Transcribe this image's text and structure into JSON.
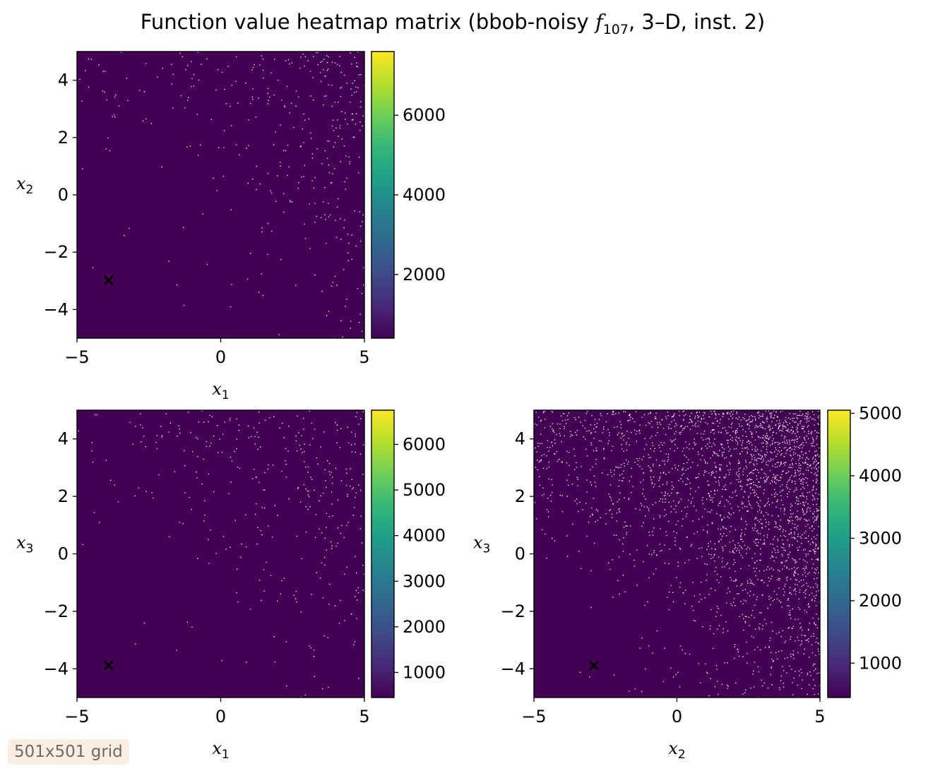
{
  "title": {
    "prefix": "Function value heatmap matrix (bbob-noisy ",
    "func_symbol": "f",
    "func_sub": "107",
    "suffix": ", 3–D, inst. 2)"
  },
  "badge": "501x501 grid",
  "colors": {
    "viridis": [
      "#440154",
      "#482878",
      "#3e4a89",
      "#31688e",
      "#26828e",
      "#1f9e89",
      "#35b779",
      "#6ece58",
      "#b5de2b",
      "#fde725"
    ],
    "background_cell": "#440154",
    "speckle": "#e8e8e8",
    "marker": "#ffffff"
  },
  "chart_data": [
    {
      "type": "heatmap",
      "panel": "x1-x2",
      "xlabel": {
        "base": "x",
        "sub": "1"
      },
      "ylabel": {
        "base": "x",
        "sub": "2"
      },
      "xlim": [
        -5,
        5
      ],
      "ylim": [
        -5,
        5
      ],
      "xticks": [
        -5,
        0,
        5
      ],
      "yticks": [
        -4,
        -2,
        0,
        2,
        4
      ],
      "xtick_labels": [
        "−5",
        "0",
        "5"
      ],
      "ytick_labels": [
        "−4",
        "−2",
        "0",
        "2",
        "4"
      ],
      "marker": {
        "symbol": "×",
        "x": -3.9,
        "y": -2.9
      },
      "speckle_density": 0.25,
      "colorbar": {
        "min": 400,
        "max": 7600,
        "ticks": [
          2000,
          4000,
          6000
        ],
        "tick_labels": [
          "2000",
          "4000",
          "6000"
        ]
      }
    },
    {
      "type": "heatmap",
      "panel": "x1-x3",
      "xlabel": {
        "base": "x",
        "sub": "1"
      },
      "ylabel": {
        "base": "x",
        "sub": "3"
      },
      "xlim": [
        -5,
        5
      ],
      "ylim": [
        -5,
        5
      ],
      "xticks": [
        -5,
        0,
        5
      ],
      "yticks": [
        -4,
        -2,
        0,
        2,
        4
      ],
      "xtick_labels": [
        "−5",
        "0",
        "5"
      ],
      "ytick_labels": [
        "−4",
        "−2",
        "0",
        "2",
        "4"
      ],
      "marker": {
        "symbol": "×",
        "x": -3.9,
        "y": -3.8
      },
      "speckle_density": 0.25,
      "colorbar": {
        "min": 450,
        "max": 6750,
        "ticks": [
          1000,
          2000,
          3000,
          4000,
          5000,
          6000
        ],
        "tick_labels": [
          "1000",
          "2000",
          "3000",
          "4000",
          "5000",
          "6000"
        ]
      }
    },
    {
      "type": "heatmap",
      "panel": "x2-x3",
      "xlabel": {
        "base": "x",
        "sub": "2"
      },
      "ylabel": {
        "base": "x",
        "sub": "3"
      },
      "xlim": [
        -5,
        5
      ],
      "ylim": [
        -5,
        5
      ],
      "xticks": [
        -5,
        0,
        5
      ],
      "yticks": [
        -4,
        -2,
        0,
        2,
        4
      ],
      "xtick_labels": [
        "−5",
        "0",
        "5"
      ],
      "ytick_labels": [
        "−4",
        "−2",
        "0",
        "2",
        "4"
      ],
      "marker": {
        "symbol": "×",
        "x": -2.9,
        "y": -3.8
      },
      "speckle_density": 1.0,
      "colorbar": {
        "min": 450,
        "max": 5050,
        "ticks": [
          1000,
          2000,
          3000,
          4000,
          5000
        ],
        "tick_labels": [
          "1000",
          "2000",
          "3000",
          "4000",
          "5000"
        ]
      }
    }
  ]
}
